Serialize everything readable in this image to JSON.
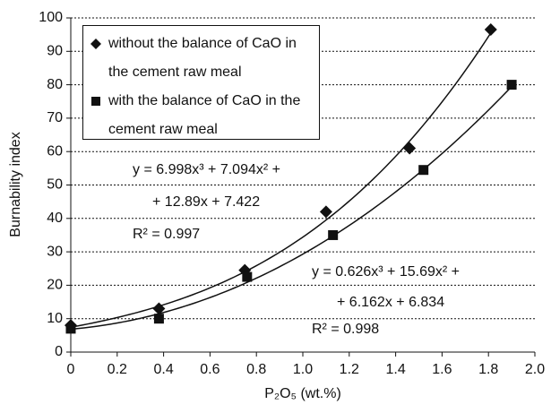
{
  "chart_data": {
    "type": "scatter",
    "x_label": "P₂O₅ (wt.%)",
    "y_label": "Burnability index",
    "xlim": [
      0,
      2.0
    ],
    "xticks": [
      0,
      {
        "value": 0.2,
        "label": "0.2"
      },
      {
        "value": 0.4,
        "label": "0.4"
      },
      {
        "value": 0.6,
        "label": "0.6"
      },
      {
        "value": 0.8,
        "label": "0.8"
      },
      {
        "value": 1.0,
        "label": "1.0"
      },
      {
        "value": 1.2,
        "label": "1.2"
      },
      {
        "value": 1.4,
        "label": "1.4"
      },
      {
        "value": 1.6,
        "label": "1.6"
      },
      {
        "value": 1.8,
        "label": "1.8"
      },
      {
        "value": 2.0,
        "label": "2.0"
      }
    ],
    "ylim": [
      0,
      100
    ],
    "yticks": [
      0,
      10,
      20,
      30,
      40,
      50,
      60,
      70,
      80,
      90,
      100
    ],
    "grid": true,
    "legend": "upper-left",
    "series": [
      {
        "name": "without the balance of CaO in the cement raw meal",
        "marker": "diamond",
        "color": "#111111",
        "x": [
          0,
          0.38,
          0.75,
          1.1,
          1.46,
          1.81
        ],
        "values": [
          8,
          13,
          24.5,
          42,
          61,
          96.5
        ],
        "trendline": {
          "coefficients": [
            6.998,
            7.094,
            12.89,
            7.422
          ]
        }
      },
      {
        "name": "with the balance of CaO in the cement raw meal",
        "marker": "square",
        "color": "#111111",
        "x": [
          0,
          0.38,
          0.76,
          1.13,
          1.52,
          1.9
        ],
        "values": [
          7,
          10,
          22.5,
          35,
          54.5,
          80
        ],
        "trendline": {
          "coefficients": [
            0.626,
            15.69,
            6.162,
            6.834
          ]
        }
      }
    ],
    "annotations": [
      "y = 6.998x³ + 7.094x² +",
      "+ 12.89x + 7.422",
      "R² = 0.997",
      "y = 0.626x³ + 15.69x² +",
      "+ 6.162x + 6.834",
      "R² = 0.998"
    ]
  }
}
